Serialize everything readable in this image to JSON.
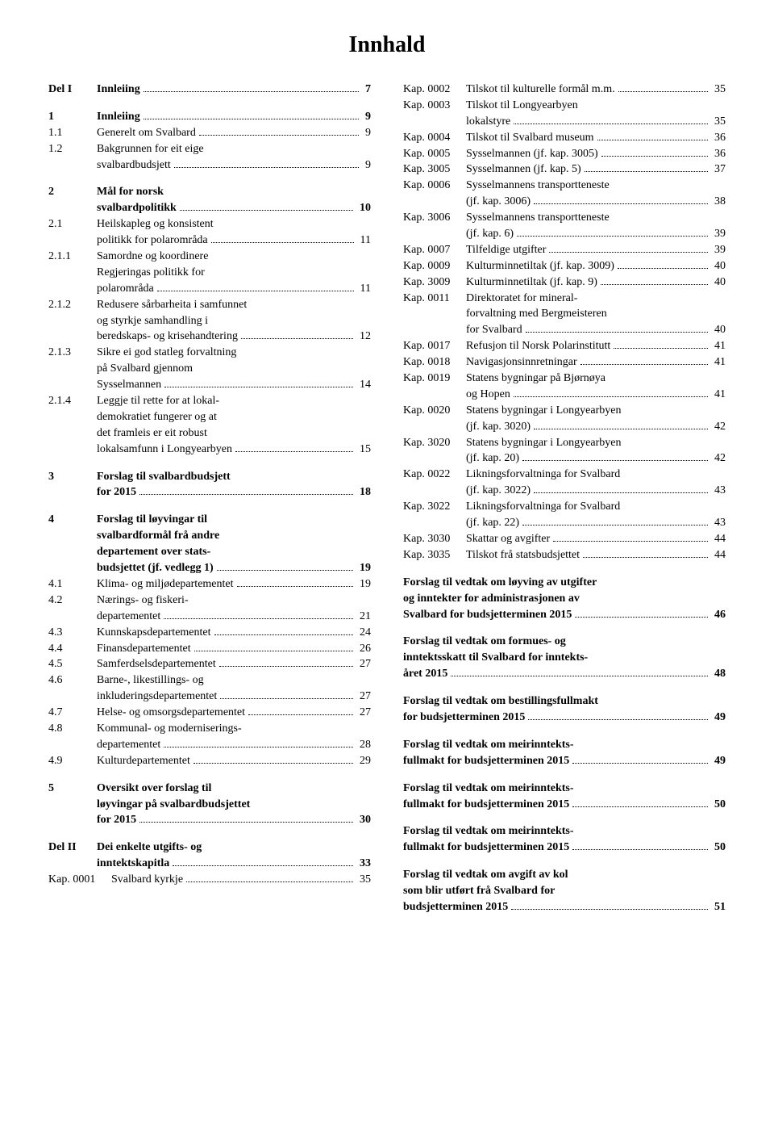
{
  "title": "Innhald",
  "left": [
    {
      "type": "row",
      "bold": true,
      "num": "Del I",
      "label": "Innleiing",
      "page": "7",
      "cont": []
    },
    {
      "type": "spacer"
    },
    {
      "type": "row",
      "bold": true,
      "num": "1",
      "label": "Innleiing",
      "page": "9",
      "cont": []
    },
    {
      "type": "row",
      "bold": false,
      "num": "1.1",
      "label": "Generelt om Svalbard",
      "page": "9",
      "cont": []
    },
    {
      "type": "row",
      "bold": false,
      "num": "1.2",
      "label": "Bakgrunnen for eit eige",
      "page": "9",
      "cont": [
        "svalbardbudsjett"
      ]
    },
    {
      "type": "spacer"
    },
    {
      "type": "row",
      "bold": true,
      "num": "2",
      "label": "Mål for norsk",
      "page": "10",
      "cont": [
        "svalbardpolitikk"
      ]
    },
    {
      "type": "row",
      "bold": false,
      "num": "2.1",
      "label": "Heilskapleg og konsistent",
      "page": "11",
      "cont": [
        "politikk for polarområda"
      ]
    },
    {
      "type": "row",
      "bold": false,
      "num": "2.1.1",
      "label": "Samordne og koordinere",
      "page": "11",
      "cont": [
        "Regjeringas politikk for",
        "polarområda"
      ]
    },
    {
      "type": "row",
      "bold": false,
      "num": "2.1.2",
      "label": "Redusere sårbarheita i samfunnet",
      "page": "12",
      "cont": [
        "og styrkje samhandling i",
        "beredskaps- og krisehandtering"
      ]
    },
    {
      "type": "row",
      "bold": false,
      "num": "2.1.3",
      "label": "Sikre ei god statleg forvaltning",
      "page": "14",
      "cont": [
        "på Svalbard gjennom",
        "Sysselmannen"
      ]
    },
    {
      "type": "row",
      "bold": false,
      "num": "2.1.4",
      "label": "Leggje til rette for at lokal-",
      "page": "15",
      "cont": [
        "demokratiet fungerer og at",
        "det framleis er eit robust",
        "lokalsamfunn i Longyearbyen"
      ]
    },
    {
      "type": "spacer"
    },
    {
      "type": "row",
      "bold": true,
      "num": "3",
      "label": "Forslag til svalbardbudsjett",
      "page": "18",
      "cont": [
        "for 2015"
      ]
    },
    {
      "type": "spacer"
    },
    {
      "type": "row",
      "bold": true,
      "num": "4",
      "label": "Forslag til løyvingar til",
      "page": "19",
      "cont": [
        "svalbardformål frå andre",
        "departement over stats-",
        "budsjettet (jf. vedlegg 1)"
      ]
    },
    {
      "type": "row",
      "bold": false,
      "num": "4.1",
      "label": "Klima- og miljødepartementet",
      "page": "19",
      "cont": []
    },
    {
      "type": "row",
      "bold": false,
      "num": "4.2",
      "label": "Nærings- og fiskeri-",
      "page": "21",
      "cont": [
        "departementet"
      ]
    },
    {
      "type": "row",
      "bold": false,
      "num": "4.3",
      "label": "Kunnskapsdepartementet",
      "page": "24",
      "cont": []
    },
    {
      "type": "row",
      "bold": false,
      "num": "4.4",
      "label": "Finansdepartementet",
      "page": "26",
      "cont": []
    },
    {
      "type": "row",
      "bold": false,
      "num": "4.5",
      "label": "Samferdselsdepartementet",
      "page": "27",
      "cont": []
    },
    {
      "type": "row",
      "bold": false,
      "num": "4.6",
      "label": "Barne-, likestillings- og",
      "page": "27",
      "cont": [
        "inkluderingsdepartementet"
      ]
    },
    {
      "type": "row",
      "bold": false,
      "num": "4.7",
      "label": "Helse- og omsorgsdepartementet",
      "page": "27",
      "cont": []
    },
    {
      "type": "row",
      "bold": false,
      "num": "4.8",
      "label": "Kommunal- og moderniserings-",
      "page": "28",
      "cont": [
        "departementet"
      ]
    },
    {
      "type": "row",
      "bold": false,
      "num": "4.9",
      "label": "Kulturdepartementet",
      "page": "29",
      "cont": []
    },
    {
      "type": "spacer"
    },
    {
      "type": "row",
      "bold": true,
      "num": "5",
      "label": "Oversikt over forslag til",
      "page": "30",
      "cont": [
        "løyvingar på svalbardbudsjettet",
        "for 2015"
      ]
    },
    {
      "type": "spacer"
    },
    {
      "type": "row",
      "bold": true,
      "num": "Del II",
      "label": "Dei enkelte utgifts- og",
      "page": "33",
      "cont": [
        "inntektskapitla"
      ]
    },
    {
      "type": "row",
      "bold": false,
      "num": "Kap. 0001",
      "label": "Svalbard kyrkje",
      "page": "35",
      "cont": [],
      "wide": true
    }
  ],
  "right": [
    {
      "type": "row",
      "bold": false,
      "num": "Kap. 0002",
      "label": "Tilskot til kulturelle formål m.m.",
      "page": "35",
      "cont": [],
      "wide": true
    },
    {
      "type": "row",
      "bold": false,
      "num": "Kap. 0003",
      "label": "Tilskot til Longyearbyen",
      "page": "35",
      "cont": [
        "lokalstyre"
      ],
      "wide": true
    },
    {
      "type": "row",
      "bold": false,
      "num": "Kap. 0004",
      "label": "Tilskot til Svalbard museum",
      "page": "36",
      "cont": [],
      "wide": true
    },
    {
      "type": "row",
      "bold": false,
      "num": "Kap. 0005",
      "label": "Sysselmannen (jf. kap. 3005)",
      "page": "36",
      "cont": [],
      "wide": true
    },
    {
      "type": "row",
      "bold": false,
      "num": "Kap. 3005",
      "label": "Sysselmannen (jf. kap. 5)",
      "page": "37",
      "cont": [],
      "wide": true
    },
    {
      "type": "row",
      "bold": false,
      "num": "Kap. 0006",
      "label": "Sysselmannens transportteneste",
      "page": "38",
      "cont": [
        "(jf. kap. 3006)"
      ],
      "wide": true
    },
    {
      "type": "row",
      "bold": false,
      "num": "Kap. 3006",
      "label": "Sysselmannens transportteneste",
      "page": "39",
      "cont": [
        "(jf. kap. 6)"
      ],
      "wide": true
    },
    {
      "type": "row",
      "bold": false,
      "num": "Kap. 0007",
      "label": "Tilfeldige utgifter",
      "page": "39",
      "cont": [],
      "wide": true
    },
    {
      "type": "row",
      "bold": false,
      "num": "Kap. 0009",
      "label": "Kulturminnetiltak (jf. kap. 3009)",
      "page": "40",
      "cont": [],
      "wide": true
    },
    {
      "type": "row",
      "bold": false,
      "num": "Kap. 3009",
      "label": "Kulturminnetiltak (jf. kap. 9)",
      "page": "40",
      "cont": [],
      "wide": true
    },
    {
      "type": "row",
      "bold": false,
      "num": "Kap. 0011",
      "label": "Direktoratet for mineral-",
      "page": "40",
      "cont": [
        "forvaltning med Bergmeisteren",
        "for Svalbard"
      ],
      "wide": true
    },
    {
      "type": "row",
      "bold": false,
      "num": "Kap. 0017",
      "label": "Refusjon til Norsk Polarinstitutt",
      "page": "41",
      "cont": [],
      "wide": true
    },
    {
      "type": "row",
      "bold": false,
      "num": "Kap. 0018",
      "label": "Navigasjonsinnretningar",
      "page": "41",
      "cont": [],
      "wide": true
    },
    {
      "type": "row",
      "bold": false,
      "num": "Kap. 0019",
      "label": "Statens bygningar på Bjørnøya",
      "page": "41",
      "cont": [
        "og Hopen"
      ],
      "wide": true
    },
    {
      "type": "row",
      "bold": false,
      "num": "Kap. 0020",
      "label": "Statens bygningar i Longyearbyen",
      "page": "42",
      "cont": [
        "(jf. kap. 3020)"
      ],
      "wide": true
    },
    {
      "type": "row",
      "bold": false,
      "num": "Kap. 3020",
      "label": "Statens bygningar i Longyearbyen",
      "page": "42",
      "cont": [
        "(jf. kap. 20)"
      ],
      "wide": true
    },
    {
      "type": "row",
      "bold": false,
      "num": "Kap. 0022",
      "label": "Likningsforvaltninga for Svalbard",
      "page": "43",
      "cont": [
        "(jf. kap. 3022)"
      ],
      "wide": true
    },
    {
      "type": "row",
      "bold": false,
      "num": "Kap. 3022",
      "label": "Likningsforvaltninga for Svalbard",
      "page": "43",
      "cont": [
        "(jf. kap. 22)"
      ],
      "wide": true
    },
    {
      "type": "row",
      "bold": false,
      "num": "Kap. 3030",
      "label": "Skattar og avgifter",
      "page": "44",
      "cont": [],
      "wide": true
    },
    {
      "type": "row",
      "bold": false,
      "num": "Kap. 3035",
      "label": "Tilskot frå statsbudsjettet",
      "page": "44",
      "cont": [],
      "wide": true
    },
    {
      "type": "spacer"
    },
    {
      "type": "row",
      "bold": true,
      "num": "",
      "label": "Forslag til vedtak om løyving av utgifter",
      "page": "46",
      "cont": [
        "og inntekter for administrasjonen av",
        "Svalbard for budsjetterminen 2015"
      ],
      "nonum": true
    },
    {
      "type": "spacer"
    },
    {
      "type": "row",
      "bold": true,
      "num": "",
      "label": "Forslag til vedtak om formues- og",
      "page": "48",
      "cont": [
        "inntektsskatt til Svalbard for inntekts-",
        "året 2015"
      ],
      "nonum": true
    },
    {
      "type": "spacer"
    },
    {
      "type": "row",
      "bold": true,
      "num": "",
      "label": "Forslag til vedtak om bestillingsfullmakt",
      "page": "49",
      "cont": [
        "for budsjetterminen 2015"
      ],
      "nonum": true
    },
    {
      "type": "spacer"
    },
    {
      "type": "row",
      "bold": true,
      "num": "",
      "label": "Forslag til vedtak om meirinntekts-",
      "page": "49",
      "cont": [
        "fullmakt for budsjetterminen 2015"
      ],
      "nonum": true
    },
    {
      "type": "spacer"
    },
    {
      "type": "row",
      "bold": true,
      "num": "",
      "label": "Forslag til vedtak om meirinntekts-",
      "page": "50",
      "cont": [
        "fullmakt for budsjetterminen 2015"
      ],
      "nonum": true
    },
    {
      "type": "spacer"
    },
    {
      "type": "row",
      "bold": true,
      "num": "",
      "label": "Forslag til vedtak om meirinntekts-",
      "page": "50",
      "cont": [
        "fullmakt for budsjetterminen 2015"
      ],
      "nonum": true
    },
    {
      "type": "spacer"
    },
    {
      "type": "row",
      "bold": true,
      "num": "",
      "label": "Forslag til vedtak om avgift av kol",
      "page": "51",
      "cont": [
        "som blir utført frå Svalbard for",
        "budsjetterminen 2015"
      ],
      "nonum": true
    }
  ]
}
